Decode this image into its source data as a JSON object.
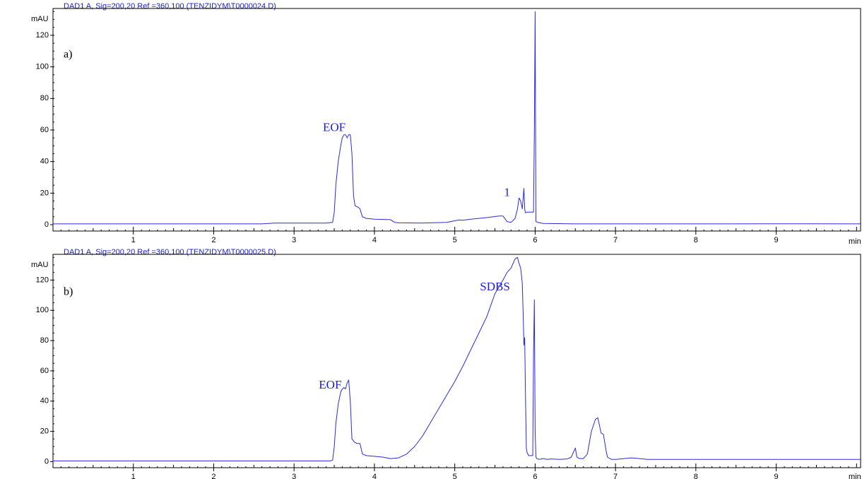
{
  "chart_data": [
    {
      "type": "line",
      "header": "DAD1 A, Sig=200,20 Ref =360,100 (TENZIDYM\\T0000024.D)",
      "panel_label": "a)",
      "ylabel": "mAU",
      "xlabel": "min",
      "xlim": [
        0,
        10.05
      ],
      "ylim": [
        -4,
        137
      ],
      "x_ticks": [
        1,
        2,
        3,
        4,
        5,
        6,
        7,
        8,
        9
      ],
      "y_ticks": [
        0,
        20,
        40,
        60,
        80,
        100,
        120
      ],
      "annotations": [
        {
          "text": "EOF",
          "x": 3.5,
          "y": 61
        },
        {
          "text": "1",
          "x": 5.65,
          "y": 20
        }
      ],
      "series": [
        {
          "x": [
            0,
            2.6,
            2.75,
            3.4,
            3.48,
            3.5,
            3.52,
            3.55,
            3.58,
            3.6,
            3.62,
            3.64,
            3.66,
            3.68,
            3.7,
            3.72,
            3.74,
            3.76,
            3.8,
            3.82,
            3.85,
            3.9,
            4.0,
            4.2,
            4.25,
            4.3,
            4.6,
            4.9,
            5.0,
            5.05,
            5.1,
            5.2,
            5.4,
            5.55,
            5.6,
            5.65,
            5.7,
            5.75,
            5.78,
            5.8,
            5.82,
            5.84,
            5.86,
            5.87,
            5.88,
            5.9,
            5.94,
            5.98,
            5.99,
            6.0,
            6.005,
            6.01,
            6.03,
            6.1,
            6.5,
            7.0,
            8.0,
            9.0,
            10.05
          ],
          "y": [
            0.5,
            0.5,
            1.0,
            1.0,
            1.5,
            8,
            25,
            40,
            50,
            55,
            57,
            57,
            55,
            57,
            57,
            45,
            18,
            12,
            11,
            10,
            5,
            4,
            3.5,
            3.2,
            1.5,
            1.2,
            1.0,
            1.5,
            2.5,
            3.0,
            2.8,
            3.5,
            4.5,
            5.5,
            5.5,
            2.0,
            1.5,
            4.0,
            10,
            17,
            15,
            10,
            23,
            10,
            7.5,
            8.0,
            8.0,
            8.0,
            60,
            135,
            60,
            2.0,
            1.5,
            0.8,
            0.5,
            0.5,
            0.5,
            0.6,
            0.5
          ]
        }
      ]
    },
    {
      "type": "line",
      "header": "DAD1 A, Sig=200,20 Ref =360,100 (TENZIDYM\\T0000025.D)",
      "panel_label": "b)",
      "ylabel": "mAU",
      "xlabel": "min",
      "xlim": [
        0,
        10.05
      ],
      "ylim": [
        -4,
        137
      ],
      "x_ticks": [
        1,
        2,
        3,
        4,
        5,
        6,
        7,
        8,
        9
      ],
      "y_ticks": [
        0,
        20,
        40,
        60,
        80,
        100,
        120
      ],
      "annotations": [
        {
          "text": "EOF",
          "x": 3.45,
          "y": 50
        },
        {
          "text": "SDBS",
          "x": 5.5,
          "y": 115
        }
      ],
      "series": [
        {
          "x": [
            0,
            3.45,
            3.48,
            3.5,
            3.52,
            3.55,
            3.58,
            3.6,
            3.62,
            3.64,
            3.66,
            3.68,
            3.7,
            3.72,
            3.75,
            3.78,
            3.82,
            3.85,
            3.9,
            4.0,
            4.1,
            4.2,
            4.3,
            4.4,
            4.5,
            4.6,
            4.7,
            4.8,
            4.9,
            5.0,
            5.1,
            5.2,
            5.3,
            5.4,
            5.5,
            5.6,
            5.65,
            5.7,
            5.75,
            5.78,
            5.8,
            5.82,
            5.84,
            5.85,
            5.86,
            5.87,
            5.88,
            5.89,
            5.9,
            5.92,
            5.95,
            5.97,
            5.98,
            5.99,
            6.0,
            6.01,
            6.02,
            6.05,
            6.1,
            6.15,
            6.2,
            6.3,
            6.4,
            6.45,
            6.5,
            6.52,
            6.55,
            6.6,
            6.65,
            6.7,
            6.75,
            6.78,
            6.8,
            6.82,
            6.85,
            6.88,
            6.9,
            6.95,
            7.0,
            7.2,
            7.3,
            7.4,
            8.0,
            9.0,
            10.05
          ],
          "y": [
            0.5,
            0.5,
            1.0,
            10,
            25,
            38,
            46,
            48,
            49,
            48,
            52,
            54,
            40,
            15,
            13,
            12,
            12,
            5,
            4,
            3.5,
            3.0,
            2.0,
            2.5,
            5,
            10,
            17,
            26,
            35,
            44,
            53,
            63,
            74,
            85,
            96,
            111,
            120,
            125,
            128,
            134,
            135,
            131,
            128,
            118,
            100,
            77,
            82,
            45,
            9,
            6,
            4,
            4,
            4,
            70,
            107,
            20,
            3,
            2,
            1.5,
            2.0,
            1.5,
            1.8,
            1.5,
            1.8,
            3,
            9,
            3,
            2,
            2,
            5,
            20,
            28,
            29,
            24,
            19,
            18,
            8,
            3,
            1.5,
            1.5,
            2.5,
            2.0,
            1.5,
            1.5,
            1.5,
            1.5
          ]
        }
      ]
    }
  ]
}
